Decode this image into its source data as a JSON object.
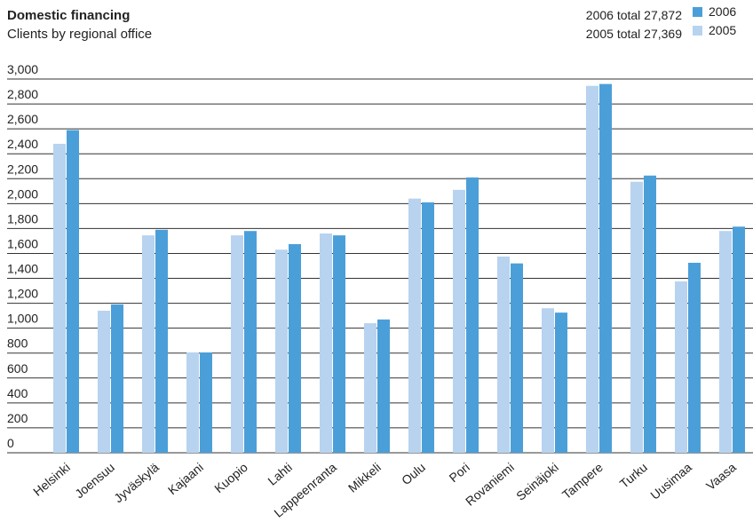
{
  "chart_data": {
    "type": "bar",
    "title": "Domestic financing",
    "subtitle": "Clients by regional office",
    "annotations": [
      "2006 total 27,872",
      "2005 total 27,369"
    ],
    "categories": [
      "Helsinki",
      "Joensuu",
      "Jyväskylä",
      "Kajaani",
      "Kuopio",
      "Lahti",
      "Lappeenranta",
      "Mikkeli",
      "Oulu",
      "Pori",
      "Rovaniemi",
      "Seinäjoki",
      "Tampere",
      "Turku",
      "Uusimaa",
      "Vaasa"
    ],
    "series": [
      {
        "name": "2005",
        "color": "#b7d3ef",
        "values": [
          2480,
          1140,
          1745,
          805,
          1745,
          1630,
          1760,
          1040,
          2040,
          2110,
          1575,
          1160,
          2945,
          2175,
          1375,
          1780
        ]
      },
      {
        "name": "2006",
        "color": "#4b9fd9",
        "values": [
          2590,
          1190,
          1790,
          805,
          1780,
          1675,
          1745,
          1070,
          2010,
          2210,
          1520,
          1125,
          2960,
          2225,
          1525,
          1815
        ]
      }
    ],
    "ylim": [
      0,
      3000
    ],
    "yticks": [
      0,
      200,
      400,
      600,
      800,
      {
        "value": 1000,
        "label": "1,000"
      },
      {
        "value": 1200,
        "label": "1,200"
      },
      {
        "value": 1400,
        "label": "1,400"
      },
      {
        "value": 1600,
        "label": "1,600"
      },
      {
        "value": 1800,
        "label": "1,800"
      },
      {
        "value": 2000,
        "label": "2,000"
      },
      {
        "value": 2200,
        "label": "2,200"
      },
      {
        "value": 2400,
        "label": "2,400"
      },
      {
        "value": 2600,
        "label": "2,600"
      },
      {
        "value": 2800,
        "label": "2,800"
      },
      {
        "value": 3000,
        "label": "3,000"
      }
    ],
    "grid": true
  }
}
